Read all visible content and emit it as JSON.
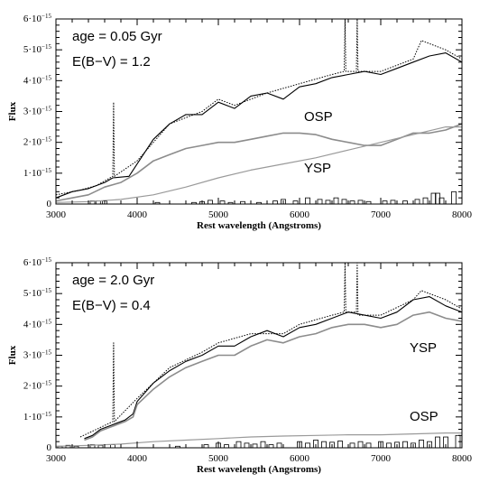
{
  "chart_data": [
    {
      "type": "line",
      "xlabel": "Rest wavelength (Angstroms)",
      "ylabel": "Flux",
      "xlim": [
        3000,
        8000
      ],
      "ylim": [
        0,
        6e-15
      ],
      "xticks": [
        "3000",
        "4000",
        "5000",
        "6000",
        "7000",
        "8000"
      ],
      "yticks": [
        {
          "mantissa": "0",
          "exp": ""
        },
        {
          "mantissa": "1·10",
          "exp": "−15"
        },
        {
          "mantissa": "2·10",
          "exp": "−15"
        },
        {
          "mantissa": "3·10",
          "exp": "−15"
        },
        {
          "mantissa": "4·10",
          "exp": "−15"
        },
        {
          "mantissa": "5·10",
          "exp": "−15"
        },
        {
          "mantissa": "6·10",
          "exp": "−15"
        }
      ],
      "annotations": [
        "age = 0.05 Gyr",
        "E(B−V) = 1.2",
        "OSP",
        "YSP"
      ],
      "series": [
        {
          "style": "black-solid",
          "color": "#000000",
          "x": [
            3000,
            3200,
            3400,
            3600,
            3700,
            3900,
            4000,
            4200,
            4400,
            4600,
            4800,
            5000,
            5200,
            5400,
            5600,
            5800,
            6000,
            6200,
            6400,
            6600,
            6800,
            7000,
            7200,
            7400,
            7600,
            7800,
            8000
          ],
          "y": [
            2e-16,
            4e-16,
            5e-16,
            7e-16,
            8.5e-16,
            9e-16,
            1.3e-15,
            2.1e-15,
            2.6e-15,
            2.9e-15,
            2.9e-15,
            3.3e-15,
            3.1e-15,
            3.5e-15,
            3.6e-15,
            3.4e-15,
            3.8e-15,
            3.9e-15,
            4.1e-15,
            4.2e-15,
            4.3e-15,
            4.2e-15,
            4.4e-15,
            4.6e-15,
            4.8e-15,
            4.9e-15,
            4.6e-15
          ]
        },
        {
          "style": "gray-solid",
          "color": "#8c8c8c",
          "x": [
            3000,
            3200,
            3400,
            3600,
            3800,
            4000,
            4200,
            4400,
            4600,
            4800,
            5000,
            5200,
            5400,
            5600,
            5800,
            6000,
            6200,
            6400,
            6600,
            6800,
            7000,
            7200,
            7400,
            7600,
            7800,
            8000
          ],
          "y": [
            1e-16,
            2e-16,
            3e-16,
            5.5e-16,
            7e-16,
            1e-15,
            1.4e-15,
            1.6e-15,
            1.8e-15,
            1.9e-15,
            2e-15,
            2e-15,
            2.1e-15,
            2.2e-15,
            2.3e-15,
            2.3e-15,
            2.25e-15,
            2.1e-15,
            2e-15,
            1.9e-15,
            1.9e-15,
            2.1e-15,
            2.3e-15,
            2.3e-15,
            2.4e-15,
            2.6e-15
          ]
        },
        {
          "style": "gray-thin",
          "color": "#9a9a9a",
          "x": [
            3000,
            3400,
            3800,
            4200,
            4600,
            5000,
            5400,
            5800,
            6200,
            6600,
            7000,
            7400,
            7800,
            8000
          ],
          "y": [
            5e-17,
            8e-17,
            1.5e-16,
            3e-16,
            5.5e-16,
            8.5e-16,
            1.1e-15,
            1.3e-15,
            1.5e-15,
            1.75e-15,
            2e-15,
            2.25e-15,
            2.5e-15,
            2.5e-15
          ]
        },
        {
          "style": "black-dotted",
          "color": "#000000",
          "x": [
            3000,
            3300,
            3500,
            3700,
            3710,
            3720,
            4000,
            4400,
            4800,
            5000,
            5200,
            5600,
            6000,
            6400,
            6550,
            6560,
            6570,
            6700,
            6710,
            6720,
            7000,
            7400,
            7500,
            7800,
            8000
          ],
          "y": [
            3e-16,
            4.5e-16,
            6e-16,
            9e-16,
            3.3e-15,
            9e-16,
            1.4e-15,
            2.6e-15,
            3e-15,
            3.4e-15,
            3.2e-15,
            3.6e-15,
            3.9e-15,
            4.2e-15,
            4.3e-15,
            6e-15,
            4.3e-15,
            4.3e-15,
            6e-15,
            4.3e-15,
            4.3e-15,
            4.7e-15,
            5.3e-15,
            5e-15,
            4.7e-15
          ]
        }
      ],
      "bars": {
        "x": [
          3450,
          3520,
          3600,
          4250,
          4700,
          4800,
          4900,
          5050,
          5150,
          5300,
          5500,
          5700,
          5800,
          5950,
          6100,
          6250,
          6350,
          6450,
          6550,
          6650,
          6750,
          6850,
          7050,
          7150,
          7300,
          7450,
          7550,
          7650,
          7700,
          7750,
          7900
        ],
        "y": [
          1e-16,
          1e-16,
          1e-16,
          5e-17,
          5e-17,
          8e-17,
          1.2e-16,
          1e-16,
          5e-17,
          8e-17,
          5e-17,
          1e-16,
          1.5e-16,
          1e-16,
          2e-16,
          1.5e-16,
          1.2e-16,
          2e-16,
          1.5e-16,
          1e-16,
          1.2e-16,
          8e-17,
          1e-16,
          1.2e-16,
          1e-16,
          1.5e-16,
          2e-16,
          3.5e-16,
          3.5e-16,
          2e-16,
          4e-16
        ]
      }
    },
    {
      "type": "line",
      "xlabel": "Rest wavelength (Angstroms)",
      "ylabel": "Flux",
      "xlim": [
        3000,
        8000
      ],
      "ylim": [
        0,
        6e-15
      ],
      "xticks": [
        "3000",
        "4000",
        "5000",
        "6000",
        "7000",
        "8000"
      ],
      "yticks": [
        {
          "mantissa": "0",
          "exp": ""
        },
        {
          "mantissa": "1·10",
          "exp": "−15"
        },
        {
          "mantissa": "2·10",
          "exp": "−15"
        },
        {
          "mantissa": "3·10",
          "exp": "−15"
        },
        {
          "mantissa": "4·10",
          "exp": "−15"
        },
        {
          "mantissa": "5·10",
          "exp": "−15"
        },
        {
          "mantissa": "6·10",
          "exp": "−15"
        }
      ],
      "annotations": [
        "age = 2.0 Gyr",
        "E(B−V) = 0.4",
        "YSP",
        "OSP"
      ],
      "series": [
        {
          "style": "black-solid",
          "color": "#000000",
          "x": [
            3350,
            3450,
            3550,
            3650,
            3750,
            3850,
            3950,
            4000,
            4200,
            4400,
            4600,
            4800,
            5000,
            5200,
            5400,
            5600,
            5800,
            6000,
            6200,
            6400,
            6600,
            6800,
            7000,
            7200,
            7400,
            7600,
            7800,
            8000
          ],
          "y": [
            3e-16,
            4e-16,
            6e-16,
            7e-16,
            8e-16,
            9e-16,
            1.1e-15,
            1.5e-15,
            2.1e-15,
            2.5e-15,
            2.8e-15,
            3e-15,
            3.3e-15,
            3.3e-15,
            3.6e-15,
            3.8e-15,
            3.6e-15,
            3.9e-15,
            4e-15,
            4.2e-15,
            4.4e-15,
            4.3e-15,
            4.2e-15,
            4.4e-15,
            4.8e-15,
            4.9e-15,
            4.6e-15,
            4.4e-15
          ]
        },
        {
          "style": "gray-solid",
          "color": "#8c8c8c",
          "x": [
            3350,
            3450,
            3550,
            3650,
            3750,
            3850,
            3950,
            4000,
            4200,
            4400,
            4600,
            4800,
            5000,
            5200,
            5400,
            5600,
            5800,
            6000,
            6200,
            6400,
            6600,
            6800,
            7000,
            7200,
            7400,
            7600,
            7800,
            8000
          ],
          "y": [
            2.5e-16,
            3.5e-16,
            5.5e-16,
            6.5e-16,
            7.5e-16,
            8.5e-16,
            1e-15,
            1.4e-15,
            1.9e-15,
            2.3e-15,
            2.6e-15,
            2.8e-15,
            3e-15,
            3e-15,
            3.3e-15,
            3.5e-15,
            3.4e-15,
            3.6e-15,
            3.7e-15,
            3.9e-15,
            4e-15,
            4e-15,
            3.9e-15,
            4e-15,
            4.3e-15,
            4.4e-15,
            4.2e-15,
            4.1e-15
          ]
        },
        {
          "style": "gray-thin",
          "color": "#9a9a9a",
          "x": [
            3000,
            3400,
            3800,
            4200,
            4600,
            5000,
            5400,
            5800,
            6200,
            6600,
            7000,
            7400,
            7800,
            8000
          ],
          "y": [
            5e-17,
            8e-17,
            1.2e-16,
            2e-16,
            2.5e-16,
            3e-16,
            3.5e-16,
            3.8e-16,
            4e-16,
            4.2e-16,
            4.2e-16,
            4.5e-16,
            4.8e-16,
            4.8e-16
          ]
        },
        {
          "style": "black-dotted",
          "color": "#000000",
          "x": [
            3300,
            3500,
            3700,
            3710,
            3720,
            4000,
            4400,
            4800,
            5000,
            5400,
            5800,
            6000,
            6400,
            6550,
            6560,
            6570,
            6700,
            6710,
            6720,
            7000,
            7400,
            7500,
            7800,
            8000
          ],
          "y": [
            3.5e-16,
            6e-16,
            8.5e-16,
            3.4e-15,
            8.5e-16,
            1.6e-15,
            2.6e-15,
            3.1e-15,
            3.4e-15,
            3.7e-15,
            3.7e-15,
            4e-15,
            4.3e-15,
            4.4e-15,
            6e-15,
            4.4e-15,
            4.4e-15,
            6e-15,
            4.3e-15,
            4.3e-15,
            4.8e-15,
            5.1e-15,
            4.8e-15,
            4.5e-15
          ]
        }
      ],
      "bars": {
        "x": [
          3050,
          3150,
          3250,
          3450,
          3550,
          3700,
          4500,
          4850,
          5000,
          5100,
          5250,
          5350,
          5450,
          5550,
          5650,
          5750,
          6000,
          6100,
          6200,
          6300,
          6400,
          6500,
          6650,
          6750,
          6850,
          7000,
          7100,
          7200,
          7300,
          7400,
          7500,
          7600,
          7700,
          7800,
          7950
        ],
        "y": [
          5e-17,
          8e-17,
          5e-17,
          1e-16,
          8e-17,
          1e-16,
          5e-17,
          1e-16,
          1.5e-16,
          1e-16,
          2e-16,
          1.5e-16,
          1.2e-16,
          2e-16,
          1e-16,
          1.5e-16,
          2e-16,
          1.5e-16,
          2.5e-16,
          2e-16,
          1.8e-16,
          2.2e-16,
          1.5e-16,
          2e-16,
          1.5e-16,
          2e-16,
          1.5e-16,
          1.8e-16,
          2e-16,
          1.5e-16,
          2.5e-16,
          2e-16,
          3.5e-16,
          3.5e-16,
          4e-16
        ]
      }
    }
  ]
}
